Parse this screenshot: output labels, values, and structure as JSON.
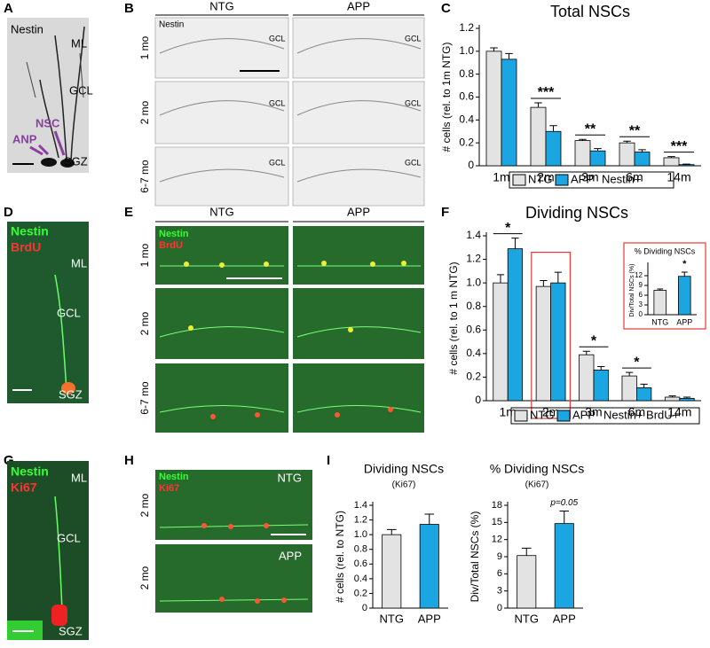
{
  "panel_letters": [
    "A",
    "B",
    "C",
    "D",
    "E",
    "F",
    "G",
    "H",
    "I"
  ],
  "panel_a": {
    "stain": "Nestin",
    "layers": [
      "ML",
      "GCL",
      "SGZ"
    ],
    "arrows": [
      "NSC",
      "ANP"
    ]
  },
  "panel_b": {
    "columns": [
      "NTG",
      "APP"
    ],
    "stain": "Nestin",
    "rows": [
      "1 mo",
      "2 mo",
      "6-7 mo"
    ],
    "layer": "GCL"
  },
  "panel_d": {
    "stains": [
      "Nestin",
      "BrdU"
    ],
    "layers": [
      "ML",
      "GCL",
      "SGZ"
    ]
  },
  "panel_e": {
    "columns": [
      "NTG",
      "APP"
    ],
    "stains": [
      "Nestin",
      "BrdU"
    ],
    "rows": [
      "1 mo",
      "2 mo",
      "6-7 mo"
    ]
  },
  "panel_g": {
    "stains": [
      "Nestin",
      "Ki67"
    ],
    "layers": [
      "ML",
      "GCL",
      "SGZ"
    ]
  },
  "panel_h": {
    "stains": [
      "Nestin",
      "Ki67"
    ],
    "conditions": [
      "NTG",
      "APP"
    ],
    "rows": [
      "2 mo",
      "2 mo"
    ]
  },
  "chart_data": [
    {
      "type": "bar",
      "title": "Total NSCs",
      "y_label": "# cells (rel. to 1m NTG)",
      "categories": [
        "1m",
        "2m",
        "3m",
        "6m",
        "14m"
      ],
      "series": [
        {
          "name": "NTG",
          "color": "#e3e3e3",
          "values": [
            1.0,
            0.51,
            0.22,
            0.2,
            0.07
          ],
          "errors": [
            0.03,
            0.04,
            0.01,
            0.015,
            0.01
          ]
        },
        {
          "name": "APP",
          "color": "#1ba6e2",
          "values": [
            0.93,
            0.3,
            0.13,
            0.12,
            0.01
          ],
          "errors": [
            0.05,
            0.05,
            0.02,
            0.02,
            0.005
          ]
        }
      ],
      "legend_note": "Nestin+",
      "ylim": [
        0,
        1.2
      ],
      "yticks": [
        0,
        0.2,
        0.4,
        0.6,
        0.8,
        {
          "value": 1,
          "label": "1.0"
        },
        1.2
      ],
      "annotations": [
        {
          "text": "***",
          "category": "2m"
        },
        {
          "text": "**",
          "category": "3m"
        },
        {
          "text": "**",
          "category": "6m"
        },
        {
          "text": "***",
          "category": "14m"
        }
      ]
    },
    {
      "type": "bar",
      "title": "Dividing NSCs",
      "y_label": "# cells (rel. to 1 m NTG)",
      "categories": [
        "1m",
        "2m",
        "3m",
        "6m",
        "14m"
      ],
      "series": [
        {
          "name": "NTG",
          "color": "#e3e3e3",
          "values": [
            1.0,
            0.97,
            0.39,
            0.21,
            0.03
          ],
          "errors": [
            0.07,
            0.05,
            0.03,
            0.03,
            0.01
          ]
        },
        {
          "name": "APP",
          "color": "#1ba6e2",
          "values": [
            1.29,
            1.0,
            0.26,
            0.11,
            0.02
          ],
          "errors": [
            0.09,
            0.09,
            0.03,
            0.03,
            0.01
          ]
        }
      ],
      "legend_note": "Nestin+ BrdU+",
      "ylim": [
        0,
        1.4
      ],
      "yticks": [
        0,
        0.2,
        0.4,
        0.6,
        0.8,
        {
          "value": 1,
          "label": "1.0"
        },
        1.2,
        1.4
      ],
      "annotations": [
        {
          "text": "*",
          "category": "1m"
        },
        {
          "text": "*",
          "category": "3m"
        },
        {
          "text": "*",
          "category": "6m"
        }
      ],
      "highlight_category": "2m"
    },
    {
      "type": "bar",
      "title": "% Dividing NSCs",
      "y_label": "Div/Total NSCs (%)",
      "categories": [
        "NTG",
        "APP"
      ],
      "values": [
        7.5,
        11.8
      ],
      "errors": [
        0.4,
        1.3
      ],
      "colors": [
        "#e3e3e3",
        "#1ba6e2"
      ],
      "ylim": [
        0,
        15
      ],
      "yticks": [
        0,
        3,
        6,
        9,
        12
      ],
      "annotations": [
        {
          "text": "*",
          "category": "APP"
        }
      ]
    },
    {
      "type": "bar",
      "title": "Dividing NSCs",
      "subtitle": "(Ki67)",
      "y_label": "# cells (rel. to NTG)",
      "categories": [
        "NTG",
        "APP"
      ],
      "values": [
        1.0,
        1.14
      ],
      "errors": [
        0.07,
        0.14
      ],
      "colors": [
        "#e3e3e3",
        "#1ba6e2"
      ],
      "ylim": [
        0,
        1.4
      ],
      "yticks": [
        0,
        0.2,
        0.4,
        0.6,
        0.8,
        {
          "value": 1,
          "label": "1.0"
        },
        1.2,
        1.4
      ]
    },
    {
      "type": "bar",
      "title": "% Dividing NSCs",
      "subtitle": "(Ki67)",
      "y_label": "Div/Total NSCs (%)",
      "categories": [
        "NTG",
        "APP"
      ],
      "values": [
        9.2,
        14.8
      ],
      "errors": [
        1.3,
        2.2
      ],
      "colors": [
        "#e3e3e3",
        "#1ba6e2"
      ],
      "ylim": [
        0,
        18
      ],
      "yticks": [
        0,
        3,
        6,
        9,
        12,
        15,
        18
      ],
      "annotations": [
        {
          "text": "p=0.05",
          "category": "APP"
        }
      ]
    }
  ]
}
